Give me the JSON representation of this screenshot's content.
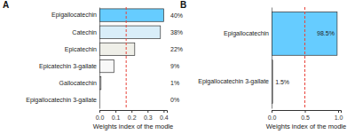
{
  "chart_data": [
    {
      "type": "bar",
      "orientation": "horizontal",
      "title": "A",
      "x_label": "Weights index of the  modle",
      "categories": [
        "Epigallocatechin",
        "Catechin",
        "Epicatechin",
        "Epicatechin 3-gallate",
        "Gallocatechin",
        "Epigallocatechin 3-gallate"
      ],
      "values": [
        0.4,
        0.38,
        0.22,
        0.09,
        0.01,
        0.0
      ],
      "value_labels": [
        "40%",
        "38%",
        "22%",
        "9%",
        "1%",
        "0%"
      ],
      "colors": [
        "#66ccff",
        "#d9eef9",
        "#efefe8",
        "#f8f8f8",
        "#ffffff",
        "#ffffff"
      ],
      "data_labels": true,
      "xlim": [
        0,
        0.42
      ],
      "xticks": [
        {
          "value": 0,
          "label": "0.0"
        },
        0.1,
        0.2,
        0.3,
        0.4
      ],
      "reference_line": 0.1667
    },
    {
      "type": "bar",
      "orientation": "horizontal",
      "title": "B",
      "x_label": "Weights index of the modle",
      "categories": [
        "Epigallocatechin",
        "Epigallocatechin 3-gallate"
      ],
      "values": [
        0.985,
        0.015
      ],
      "value_labels": [
        "98.5%",
        "1.5%"
      ],
      "colors": [
        "#66ccff",
        "#f8f8f8"
      ],
      "data_labels": true,
      "xlim": [
        0,
        1.04
      ],
      "xticks": [
        {
          "value": 0,
          "label": "0.0"
        },
        0.5,
        {
          "value": 1,
          "label": "1.0"
        }
      ],
      "reference_line": 0.5
    }
  ]
}
